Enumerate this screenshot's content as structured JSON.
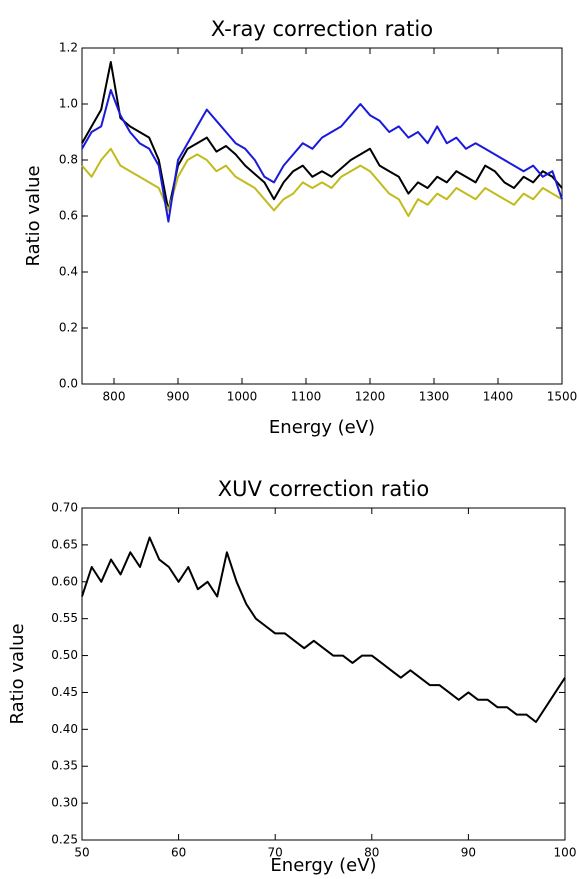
{
  "chart_data": [
    {
      "type": "line",
      "title": "X-ray correction ratio",
      "xlabel": "Energy (eV)",
      "ylabel": "Ratio value",
      "x": [
        750,
        765,
        780,
        795,
        810,
        825,
        840,
        855,
        870,
        885,
        900,
        915,
        930,
        945,
        960,
        975,
        990,
        1005,
        1020,
        1035,
        1050,
        1065,
        1080,
        1095,
        1110,
        1125,
        1140,
        1155,
        1170,
        1185,
        1200,
        1215,
        1230,
        1245,
        1260,
        1275,
        1290,
        1305,
        1320,
        1335,
        1350,
        1365,
        1380,
        1395,
        1410,
        1425,
        1440,
        1455,
        1470,
        1485,
        1500
      ],
      "series": [
        {
          "color": "#000000",
          "values": [
            0.86,
            0.92,
            0.98,
            1.15,
            0.95,
            0.92,
            0.9,
            0.88,
            0.8,
            0.62,
            0.78,
            0.84,
            0.86,
            0.88,
            0.83,
            0.85,
            0.82,
            0.78,
            0.75,
            0.72,
            0.66,
            0.72,
            0.76,
            0.78,
            0.74,
            0.76,
            0.74,
            0.77,
            0.8,
            0.82,
            0.84,
            0.78,
            0.76,
            0.74,
            0.68,
            0.72,
            0.7,
            0.74,
            0.72,
            0.76,
            0.74,
            0.72,
            0.78,
            0.76,
            0.72,
            0.7,
            0.74,
            0.72,
            0.76,
            0.74,
            0.7
          ]
        },
        {
          "color": "#c2bb1c",
          "values": [
            0.78,
            0.74,
            0.8,
            0.84,
            0.78,
            0.76,
            0.74,
            0.72,
            0.7,
            0.62,
            0.74,
            0.8,
            0.82,
            0.8,
            0.76,
            0.78,
            0.74,
            0.72,
            0.7,
            0.66,
            0.62,
            0.66,
            0.68,
            0.72,
            0.7,
            0.72,
            0.7,
            0.74,
            0.76,
            0.78,
            0.76,
            0.72,
            0.68,
            0.66,
            0.6,
            0.66,
            0.64,
            0.68,
            0.66,
            0.7,
            0.68,
            0.66,
            0.7,
            0.68,
            0.66,
            0.64,
            0.68,
            0.66,
            0.7,
            0.68,
            0.66
          ]
        },
        {
          "color": "#1a1adc",
          "values": [
            0.84,
            0.9,
            0.92,
            1.05,
            0.96,
            0.9,
            0.86,
            0.84,
            0.78,
            0.58,
            0.8,
            0.86,
            0.92,
            0.98,
            0.94,
            0.9,
            0.86,
            0.84,
            0.8,
            0.74,
            0.72,
            0.78,
            0.82,
            0.86,
            0.84,
            0.88,
            0.9,
            0.92,
            0.96,
            1.0,
            0.96,
            0.94,
            0.9,
            0.92,
            0.88,
            0.9,
            0.86,
            0.92,
            0.86,
            0.88,
            0.84,
            0.86,
            0.84,
            0.82,
            0.8,
            0.78,
            0.76,
            0.78,
            0.74,
            0.76,
            0.66
          ]
        }
      ],
      "xlim": [
        750,
        1500
      ],
      "xticks": [
        800,
        900,
        1000,
        1100,
        1200,
        1300,
        1400,
        1500
      ],
      "ylim": [
        0,
        1.2
      ],
      "yticks": [
        {
          "value": 0,
          "label": "0.0"
        },
        0.2,
        0.4,
        0.6,
        0.8,
        {
          "value": 1,
          "label": "1.0"
        },
        1.2
      ]
    },
    {
      "type": "line",
      "title": "XUV correction ratio",
      "xlabel": "Energy (eV)",
      "ylabel": "Ratio value",
      "x": [
        50,
        51,
        52,
        53,
        54,
        55,
        56,
        57,
        58,
        59,
        60,
        61,
        62,
        63,
        64,
        65,
        66,
        67,
        68,
        69,
        70,
        71,
        72,
        73,
        74,
        75,
        76,
        77,
        78,
        79,
        80,
        81,
        82,
        83,
        84,
        85,
        86,
        87,
        88,
        89,
        90,
        91,
        92,
        93,
        94,
        95,
        96,
        97,
        98,
        99,
        100
      ],
      "series": [
        {
          "color": "#000000",
          "values": [
            0.58,
            0.62,
            0.6,
            0.63,
            0.61,
            0.64,
            0.62,
            0.66,
            0.63,
            0.62,
            0.6,
            0.62,
            0.59,
            0.6,
            0.58,
            0.64,
            0.6,
            0.57,
            0.55,
            0.54,
            0.53,
            0.53,
            0.52,
            0.51,
            0.52,
            0.51,
            0.5,
            0.5,
            0.49,
            0.5,
            0.5,
            0.49,
            0.48,
            0.47,
            0.48,
            0.47,
            0.46,
            0.46,
            0.45,
            0.44,
            0.45,
            0.44,
            0.44,
            0.43,
            0.43,
            0.42,
            0.42,
            0.41,
            0.43,
            0.45,
            0.47
          ]
        }
      ],
      "xlim": [
        50,
        100
      ],
      "xticks": [
        50,
        60,
        70,
        80,
        90,
        100
      ],
      "ylim": [
        0.25,
        0.7
      ],
      "yticks": [
        0.25,
        {
          "value": 0.3,
          "label": "0.30"
        },
        0.35,
        {
          "value": 0.4,
          "label": "0.40"
        },
        0.45,
        {
          "value": 0.5,
          "label": "0.50"
        },
        0.55,
        {
          "value": 0.6,
          "label": "0.60"
        },
        0.65,
        {
          "value": 0.7,
          "label": "0.70"
        }
      ]
    }
  ]
}
